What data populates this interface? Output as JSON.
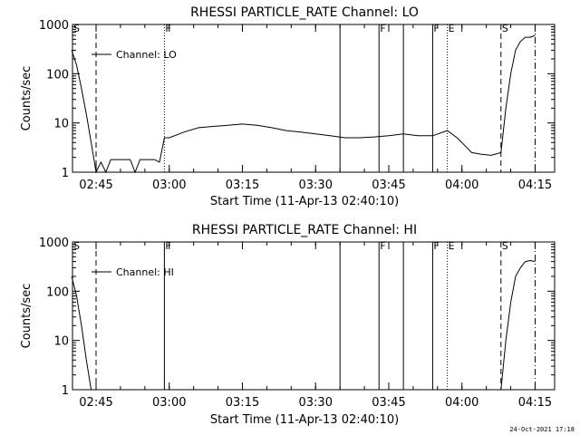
{
  "footer_date": "24-Oct-2021 17:18",
  "chart_data": [
    {
      "type": "line",
      "title": "RHESSI PARTICLE_RATE Channel: LO",
      "xlabel": "Start Time (11-Apr-13 02:40:10)",
      "ylabel": "Counts/sec",
      "y_scale": "log",
      "ylim": [
        1,
        1000
      ],
      "xlim": [
        "02:40",
        "04:19"
      ],
      "x_ticks": [
        "02:45",
        "03:00",
        "03:15",
        "03:30",
        "03:45",
        "04:00",
        "04:15"
      ],
      "y_ticks": [
        "1",
        "10",
        "100",
        "1000"
      ],
      "legend": "top-left",
      "series": [
        {
          "name": "Channel: LO",
          "x": [
            "02:40",
            "02:41",
            "02:42",
            "02:43",
            "02:44",
            "02:45",
            "02:46",
            "02:47",
            "02:48",
            "02:49",
            "02:50",
            "02:51",
            "02:52",
            "02:53",
            "02:54",
            "02:55",
            "02:56",
            "02:57",
            "02:58",
            "02:59",
            "03:00",
            "03:03",
            "03:06",
            "03:09",
            "03:12",
            "03:15",
            "03:18",
            "03:21",
            "03:24",
            "03:27",
            "03:30",
            "03:33",
            "03:36",
            "03:39",
            "03:42",
            "03:45",
            "03:48",
            "03:51",
            "03:54",
            "03:57",
            "03:59",
            "04:00",
            "04:02",
            "04:04",
            "04:06",
            "04:08",
            "04:09",
            "04:10",
            "04:11",
            "04:12",
            "04:13",
            "04:14",
            "04:15"
          ],
          "y": [
            300,
            150,
            50,
            15,
            4,
            1,
            1.6,
            1,
            1.8,
            1.8,
            1.8,
            1.8,
            1.8,
            1,
            1.8,
            1.8,
            1.8,
            1.8,
            1.6,
            5,
            5,
            6.5,
            8,
            8.5,
            9,
            9.5,
            9,
            8,
            7,
            6.5,
            6,
            5.5,
            5,
            5,
            5.2,
            5.5,
            6,
            5.5,
            5.5,
            7,
            5,
            4,
            2.5,
            2.3,
            2.2,
            2.5,
            20,
            100,
            300,
            450,
            550,
            550,
            600
          ]
        }
      ],
      "vlines": [
        {
          "x": "02:45",
          "label": "",
          "style": "dashed"
        },
        {
          "x": "02:59",
          "label": "F",
          "style": "dotted"
        },
        {
          "x": "03:35",
          "label": "",
          "style": "solid"
        },
        {
          "x": "03:43",
          "label": "F",
          "style": "solid"
        },
        {
          "x": "03:48",
          "label": "",
          "style": "solid"
        },
        {
          "x": "03:54",
          "label": "F",
          "style": "solid"
        },
        {
          "x": "03:57",
          "label": "E",
          "style": "dotted"
        },
        {
          "x": "04:08",
          "label": "S",
          "style": "dashed"
        },
        {
          "x": "04:15",
          "label": "",
          "style": "dashdot"
        }
      ],
      "edge_label": "S"
    },
    {
      "type": "line",
      "title": "RHESSI PARTICLE_RATE Channel: HI",
      "xlabel": "Start Time (11-Apr-13 02:40:10)",
      "ylabel": "Counts/sec",
      "y_scale": "log",
      "ylim": [
        1,
        1000
      ],
      "xlim": [
        "02:40",
        "04:19"
      ],
      "x_ticks": [
        "02:45",
        "03:00",
        "03:15",
        "03:30",
        "03:45",
        "04:00",
        "04:15"
      ],
      "y_ticks": [
        "1",
        "10",
        "100",
        "1000"
      ],
      "legend": "top-left",
      "series": [
        {
          "name": "Channel: HI",
          "x": [
            "02:40",
            "02:41",
            "02:42",
            "02:43",
            "02:44",
            "04:08",
            "04:09",
            "04:10",
            "04:11",
            "04:12",
            "04:13",
            "04:14",
            "04:15"
          ],
          "y": [
            200,
            80,
            20,
            4,
            1,
            1,
            10,
            60,
            200,
            300,
            400,
            420,
            400
          ]
        }
      ],
      "vlines": [
        {
          "x": "02:45",
          "label": "",
          "style": "dashed"
        },
        {
          "x": "02:59",
          "label": "F",
          "style": "solid"
        },
        {
          "x": "03:35",
          "label": "",
          "style": "solid"
        },
        {
          "x": "03:43",
          "label": "F",
          "style": "solid"
        },
        {
          "x": "03:48",
          "label": "",
          "style": "solid"
        },
        {
          "x": "03:54",
          "label": "F",
          "style": "solid"
        },
        {
          "x": "03:57",
          "label": "E",
          "style": "dotted"
        },
        {
          "x": "04:08",
          "label": "S",
          "style": "dashed"
        },
        {
          "x": "04:15",
          "label": "",
          "style": "dashdot"
        }
      ],
      "edge_label": "S"
    }
  ]
}
